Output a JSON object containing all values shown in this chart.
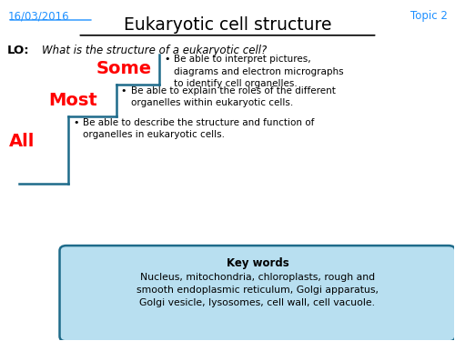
{
  "bg_color": "#ffffff",
  "date_text": "16/03/2016",
  "date_color": "#1e90ff",
  "topic_text": "Topic 2",
  "topic_color": "#1e90ff",
  "title_text": "Eukaryotic cell structure",
  "title_color": "#000000",
  "lo_label": "LO:",
  "lo_text": "What is the structure of a eukaryotic cell?",
  "all_text": "All",
  "most_text": "Most",
  "some_text": "Some",
  "label_color": "#ff0000",
  "all_bullet": "Be able to describe the structure and function of\norganelles in eukaryotic cells.",
  "most_bullet": "Be able to explain the roles of the different\norganelles within eukaryotic cells.",
  "some_bullet": "Be able to interpret pictures,\ndiagrams and electron micrographs\nto identify cell organelles.",
  "kw_title": "Key words",
  "kw_body": "Nucleus, mitochondria, chloroplasts, rough and\nsmooth endoplasmic reticulum, Golgi apparatus,\nGolgi vesicle, lysosomes, cell wall, cell vacuole.",
  "kw_box_color": "#b8dff0",
  "step_line_color": "#1e6b8a"
}
